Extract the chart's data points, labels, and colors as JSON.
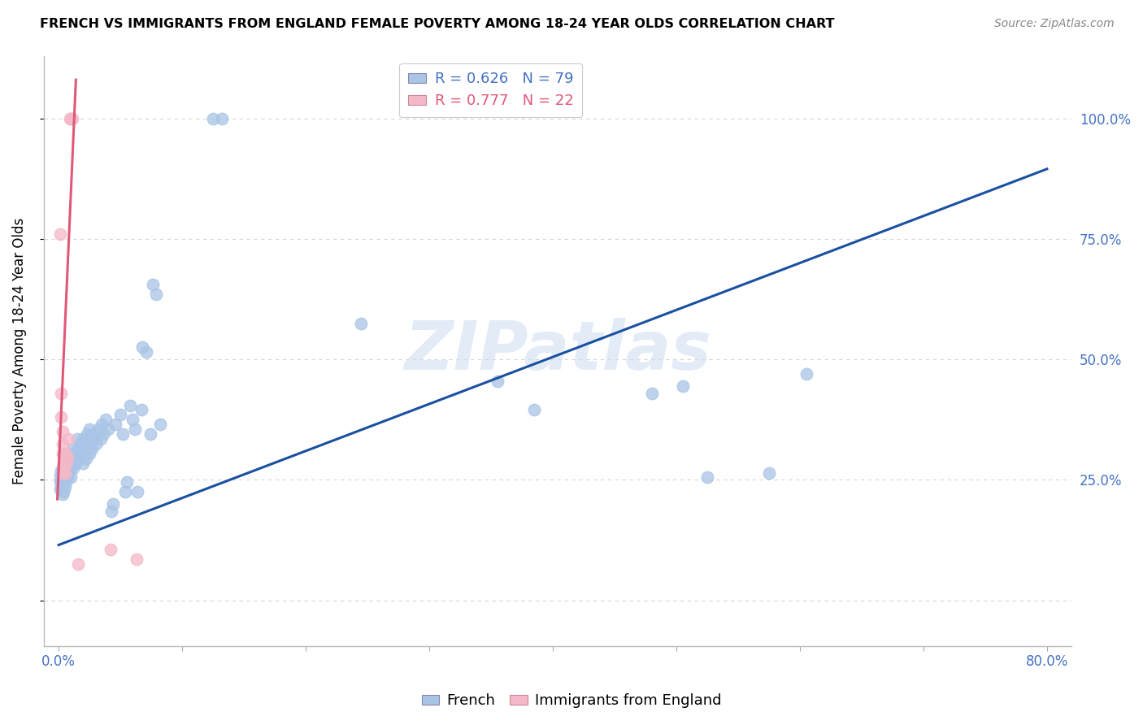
{
  "title": "FRENCH VS IMMIGRANTS FROM ENGLAND FEMALE POVERTY AMONG 18-24 YEAR OLDS CORRELATION CHART",
  "source": "Source: ZipAtlas.com",
  "blue_color": "#4472c4",
  "ylabel": "Female Poverty Among 18-24 Year Olds",
  "watermark": "ZIPatlas",
  "blue_R": 0.626,
  "blue_N": 79,
  "pink_R": 0.777,
  "pink_N": 22,
  "scatter_color_blue": "#a8c4e6",
  "scatter_color_pink": "#f4b8c8",
  "line_color_blue": "#1a50a0",
  "line_color_pink": "#e05878",
  "blue_scatter": [
    [
      0.001,
      0.245
    ],
    [
      0.001,
      0.23
    ],
    [
      0.001,
      0.26
    ],
    [
      0.002,
      0.25
    ],
    [
      0.002,
      0.235
    ],
    [
      0.002,
      0.27
    ],
    [
      0.003,
      0.22
    ],
    [
      0.003,
      0.245
    ],
    [
      0.003,
      0.265
    ],
    [
      0.004,
      0.225
    ],
    [
      0.004,
      0.255
    ],
    [
      0.004,
      0.28
    ],
    [
      0.005,
      0.235
    ],
    [
      0.005,
      0.26
    ],
    [
      0.005,
      0.3
    ],
    [
      0.006,
      0.245
    ],
    [
      0.006,
      0.27
    ],
    [
      0.007,
      0.255
    ],
    [
      0.007,
      0.295
    ],
    [
      0.008,
      0.265
    ],
    [
      0.008,
      0.3
    ],
    [
      0.009,
      0.275
    ],
    [
      0.01,
      0.255
    ],
    [
      0.01,
      0.28
    ],
    [
      0.011,
      0.305
    ],
    [
      0.012,
      0.275
    ],
    [
      0.012,
      0.315
    ],
    [
      0.013,
      0.295
    ],
    [
      0.014,
      0.285
    ],
    [
      0.015,
      0.305
    ],
    [
      0.015,
      0.335
    ],
    [
      0.016,
      0.315
    ],
    [
      0.017,
      0.295
    ],
    [
      0.018,
      0.325
    ],
    [
      0.019,
      0.305
    ],
    [
      0.02,
      0.285
    ],
    [
      0.02,
      0.335
    ],
    [
      0.021,
      0.315
    ],
    [
      0.022,
      0.295
    ],
    [
      0.023,
      0.345
    ],
    [
      0.024,
      0.325
    ],
    [
      0.025,
      0.305
    ],
    [
      0.025,
      0.355
    ],
    [
      0.026,
      0.335
    ],
    [
      0.027,
      0.315
    ],
    [
      0.028,
      0.345
    ],
    [
      0.03,
      0.325
    ],
    [
      0.032,
      0.355
    ],
    [
      0.034,
      0.335
    ],
    [
      0.035,
      0.365
    ],
    [
      0.036,
      0.345
    ],
    [
      0.038,
      0.375
    ],
    [
      0.04,
      0.355
    ],
    [
      0.043,
      0.185
    ],
    [
      0.044,
      0.2
    ],
    [
      0.046,
      0.365
    ],
    [
      0.05,
      0.385
    ],
    [
      0.052,
      0.345
    ],
    [
      0.054,
      0.225
    ],
    [
      0.055,
      0.245
    ],
    [
      0.058,
      0.405
    ],
    [
      0.06,
      0.375
    ],
    [
      0.062,
      0.355
    ],
    [
      0.064,
      0.225
    ],
    [
      0.067,
      0.395
    ],
    [
      0.068,
      0.525
    ],
    [
      0.071,
      0.515
    ],
    [
      0.074,
      0.345
    ],
    [
      0.076,
      0.655
    ],
    [
      0.079,
      0.635
    ],
    [
      0.082,
      0.365
    ],
    [
      0.125,
      1.0
    ],
    [
      0.132,
      1.0
    ],
    [
      0.245,
      0.575
    ],
    [
      0.355,
      0.455
    ],
    [
      0.385,
      0.395
    ],
    [
      0.48,
      0.43
    ],
    [
      0.505,
      0.445
    ],
    [
      0.525,
      0.255
    ],
    [
      0.575,
      0.265
    ],
    [
      0.605,
      0.47
    ]
  ],
  "pink_scatter": [
    [
      0.001,
      0.76
    ],
    [
      0.002,
      0.43
    ],
    [
      0.002,
      0.38
    ],
    [
      0.003,
      0.35
    ],
    [
      0.003,
      0.325
    ],
    [
      0.003,
      0.305
    ],
    [
      0.004,
      0.285
    ],
    [
      0.004,
      0.275
    ],
    [
      0.004,
      0.265
    ],
    [
      0.005,
      0.295
    ],
    [
      0.005,
      0.285
    ],
    [
      0.005,
      0.265
    ],
    [
      0.006,
      0.305
    ],
    [
      0.006,
      0.285
    ],
    [
      0.007,
      0.295
    ],
    [
      0.008,
      0.335
    ],
    [
      0.009,
      1.0
    ],
    [
      0.01,
      1.0
    ],
    [
      0.011,
      1.0
    ],
    [
      0.016,
      0.075
    ],
    [
      0.042,
      0.105
    ],
    [
      0.063,
      0.085
    ]
  ],
  "blue_line_x": [
    0.0,
    0.8
  ],
  "blue_line_y": [
    0.115,
    0.895
  ],
  "pink_line_x": [
    -0.001,
    0.014
  ],
  "pink_line_y": [
    0.21,
    1.08
  ],
  "xlim": [
    -0.012,
    0.82
  ],
  "ylim": [
    -0.095,
    1.13
  ],
  "xticks": [
    0.0,
    0.1,
    0.2,
    0.3,
    0.4,
    0.5,
    0.6,
    0.7,
    0.8
  ],
  "xtick_labels": [
    "0.0%",
    "",
    "",
    "",
    "",
    "",
    "",
    "",
    "80.0%"
  ],
  "ytick_vals": [
    0.0,
    0.25,
    0.5,
    0.75,
    1.0
  ],
  "ytick_labels_right": [
    "",
    "25.0%",
    "50.0%",
    "75.0%",
    "100.0%"
  ],
  "background_color": "#ffffff",
  "grid_color": "#cccccc",
  "title_fontsize": 11.5,
  "axis_label_fontsize": 12,
  "tick_fontsize": 12
}
